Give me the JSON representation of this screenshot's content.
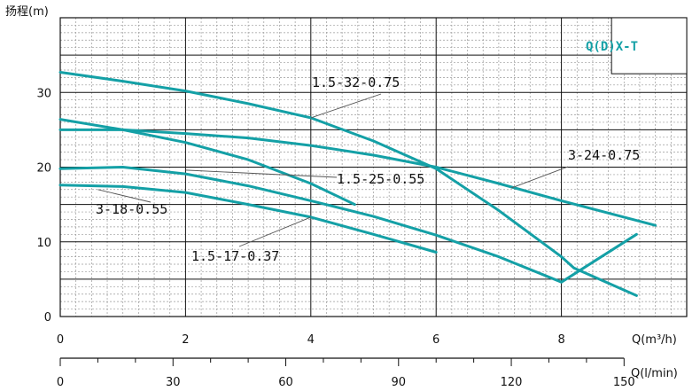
{
  "colors": {
    "curve": "#14a0a6",
    "minor_grid": "#9a9a9a",
    "major_grid": "#111111",
    "label_line": "#555555"
  },
  "chart_data": {
    "type": "line",
    "title": "",
    "ylabel": "扬程(m)",
    "xlabel": "Q(m³/h)",
    "xlabel_secondary": "Q(l/min)",
    "legend_title": "Q(D)X-T",
    "ylim": [
      0,
      40
    ],
    "xlim": [
      0,
      10
    ],
    "y_ticks": [
      "0",
      "10",
      "20",
      "30"
    ],
    "y_tick_values": [
      0,
      10,
      20,
      30
    ],
    "x_ticks": [
      "0",
      "2",
      "4",
      "6",
      "8"
    ],
    "x_tick_values": [
      0,
      2,
      4,
      6,
      8
    ],
    "x2_ticks": [
      "0",
      "30",
      "60",
      "90",
      "120",
      "150"
    ],
    "x2_tick_values": [
      0,
      30,
      60,
      90,
      120,
      150
    ],
    "grid": true,
    "series": [
      {
        "name": "1.5-32-0.75",
        "points": [
          [
            0,
            32.7
          ],
          [
            1,
            31.5
          ],
          [
            2,
            30.2
          ],
          [
            3,
            28.5
          ],
          [
            4,
            26.6
          ],
          [
            5,
            23.5
          ],
          [
            6,
            19.8
          ],
          [
            7,
            14.2
          ],
          [
            8,
            8.0
          ],
          [
            8.2,
            6.5
          ],
          [
            9.2,
            2.8
          ]
        ]
      },
      {
        "name": "3-24-0.75",
        "points": [
          [
            0,
            25.0
          ],
          [
            1,
            25.0
          ],
          [
            2,
            24.5
          ],
          [
            3,
            23.9
          ],
          [
            4,
            22.9
          ],
          [
            5,
            21.6
          ],
          [
            6,
            20.0
          ],
          [
            7,
            17.8
          ],
          [
            8,
            15.5
          ],
          [
            9,
            13.3
          ],
          [
            9.5,
            12.2
          ]
        ]
      },
      {
        "name": "1.5-25-0.55",
        "points": [
          [
            0,
            26.4
          ],
          [
            1,
            25.0
          ],
          [
            2,
            23.3
          ],
          [
            3,
            21.0
          ],
          [
            4,
            17.8
          ],
          [
            4.7,
            15.0
          ]
        ]
      },
      {
        "name": "3-18-0.55",
        "points": [
          [
            0,
            19.8
          ],
          [
            1,
            20.0
          ],
          [
            2,
            19.1
          ],
          [
            3,
            17.5
          ],
          [
            4,
            15.5
          ],
          [
            5,
            13.4
          ],
          [
            6,
            10.9
          ],
          [
            7,
            8.0
          ],
          [
            8,
            4.6
          ],
          [
            9.2,
            11.0
          ]
        ]
      },
      {
        "name": "1.5-17-0.37",
        "points": [
          [
            0,
            17.6
          ],
          [
            1,
            17.4
          ],
          [
            2,
            16.6
          ],
          [
            3,
            15.0
          ],
          [
            4,
            13.3
          ],
          [
            5,
            11.0
          ],
          [
            6,
            8.6
          ]
        ]
      }
    ],
    "annotations": [
      {
        "text": "1.5-32-0.75",
        "x": 4.0,
        "y": 26.6
      },
      {
        "text": "3-24-0.75",
        "x": 7.2,
        "y": 17.2
      },
      {
        "text": "1.5-25-0.55",
        "x": 2.0,
        "y": 19.6
      },
      {
        "text": "3-18-0.55",
        "x": 0.6,
        "y": 17.0
      },
      {
        "text": "1.5-17-0.37",
        "x": 4.0,
        "y": 13.3
      }
    ]
  }
}
